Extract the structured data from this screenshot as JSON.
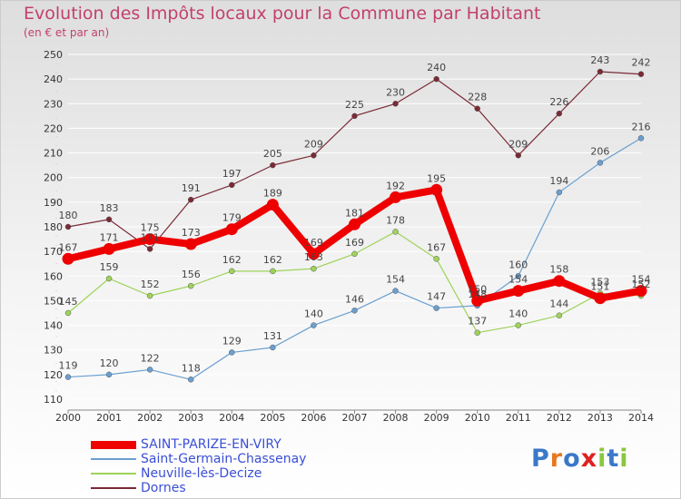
{
  "title": "Evolution des Impôts locaux pour la Commune par Habitant",
  "subtitle": "(en € et par an)",
  "logo": {
    "text": "Proxiti",
    "letters": [
      "P",
      "r",
      "o",
      "x",
      "i",
      "t",
      "i"
    ],
    "letter_colors": [
      "#3a78c9",
      "#e87722",
      "#3a78c9",
      "#e02020",
      "#8cc63e",
      "#3a78c9",
      "#8cc63e"
    ]
  },
  "chart_data": {
    "type": "line",
    "title": "Evolution des Impôts locaux pour la Commune par Habitant",
    "subtitle": "(en € et par an)",
    "xlabel": "",
    "ylabel": "",
    "x": [
      2000,
      2001,
      2002,
      2003,
      2004,
      2005,
      2006,
      2007,
      2008,
      2009,
      2010,
      2011,
      2012,
      2013,
      2014
    ],
    "ylim": [
      110,
      250
    ],
    "yticks": [
      110,
      120,
      130,
      140,
      150,
      160,
      170,
      180,
      190,
      200,
      210,
      220,
      230,
      240,
      250
    ],
    "grid": "horizontal",
    "legend_position": "bottom-left",
    "series": [
      {
        "name": "Dornes",
        "color": "#7a2a35",
        "values": [
          180,
          183,
          171,
          191,
          197,
          205,
          209,
          225,
          230,
          240,
          228,
          209,
          226,
          243,
          242
        ],
        "labels": [
          "180",
          "183",
          "171",
          "191",
          "197",
          "205",
          "209",
          "225",
          "230",
          "240",
          "228",
          "209",
          "226",
          "243",
          "242"
        ]
      },
      {
        "name": "Neuville-lès-Decize",
        "color": "#9ed35a",
        "values": [
          145,
          159,
          152,
          156,
          162,
          162,
          163,
          169,
          178,
          167,
          137,
          140,
          144,
          153,
          152
        ],
        "labels": [
          "145",
          "159",
          "152",
          "156",
          "162",
          "162",
          "163",
          "169",
          "178",
          "167",
          "137",
          "140",
          "144",
          "153",
          "152"
        ]
      },
      {
        "name": "Saint-Germain-Chassenay",
        "color": "#6a9fd0",
        "values": [
          119,
          120,
          122,
          118,
          129,
          131,
          140,
          146,
          154,
          147,
          148,
          160,
          194,
          206,
          216
        ],
        "labels": [
          "119",
          "120",
          "122",
          "118",
          "129",
          "131",
          "140",
          "146",
          "154",
          "147",
          "148",
          "160",
          "194",
          "206",
          "216"
        ]
      },
      {
        "name": "SAINT-PARIZE-EN-VIRY",
        "color": "#ee0000",
        "values": [
          167,
          171,
          175,
          173,
          179,
          189,
          169,
          181,
          192,
          195,
          150,
          154,
          158,
          151,
          154
        ],
        "labels": [
          "167",
          "171",
          "175",
          "173",
          "179",
          "189",
          "169",
          "181",
          "192",
          "195",
          "150",
          "154",
          "158",
          "151",
          "154"
        ]
      }
    ],
    "legend_order": [
      "SAINT-PARIZE-EN-VIRY",
      "Saint-Germain-Chassenay",
      "Neuville-lès-Decize",
      "Dornes"
    ]
  }
}
